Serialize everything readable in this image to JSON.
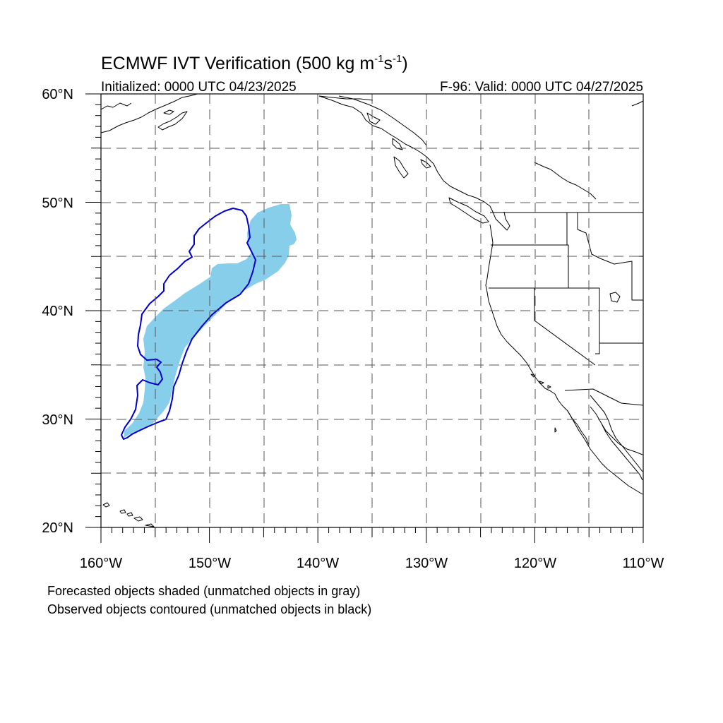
{
  "title": {
    "main": "ECMWF IVT Verification (500 kg m",
    "exp1": "-1",
    "mid": "s",
    "exp2": "-1",
    "end": ")"
  },
  "initialized": "Initialized: 0000 UTC 04/23/2025",
  "valid": "F-96: Valid: 0000 UTC 04/27/2025",
  "lat_labels": [
    "60°N",
    "50°N",
    "40°N",
    "30°N",
    "20°N"
  ],
  "lon_labels": [
    "160°W",
    "150°W",
    "140°W",
    "130°W",
    "120°W",
    "110°W"
  ],
  "footnote_1": "Forecasted objects shaded (unmatched objects in gray)",
  "footnote_2": "Observed objects contoured (unmatched objects in black)",
  "colors": {
    "forecast_fill": "#87ceeb",
    "observed_contour": "#0000cc",
    "coastline": "#000000",
    "gridline": "#555555"
  }
}
